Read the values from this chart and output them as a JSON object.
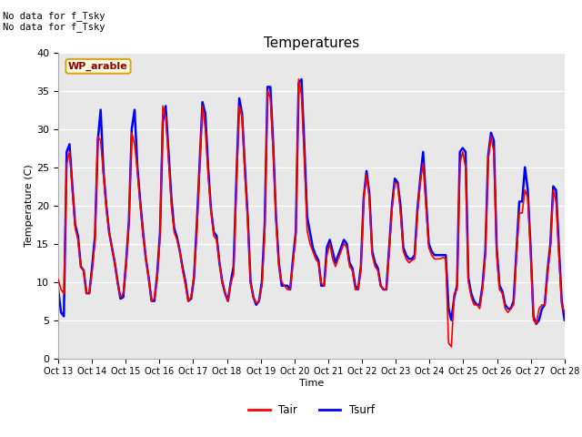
{
  "title": "Temperatures",
  "xlabel": "Time",
  "ylabel": "Temperature (C)",
  "ylim": [
    0,
    40
  ],
  "xtick_labels": [
    "Oct 13",
    "Oct 14",
    "Oct 15",
    "Oct 16",
    "Oct 17",
    "Oct 18",
    "Oct 19",
    "Oct 20",
    "Oct 21",
    "Oct 22",
    "Oct 23",
    "Oct 24",
    "Oct 25",
    "Oct 26",
    "Oct 27",
    "Oct 28"
  ],
  "legend_entries": [
    "Tair",
    "Tsurf"
  ],
  "tair_color": "red",
  "tsurf_color": "blue",
  "bg_color": "#e8e8e8",
  "wp_label": "WP_arable",
  "tair": [
    10.3,
    9.0,
    8.5,
    25.5,
    27.0,
    22.0,
    17.0,
    15.5,
    12.0,
    11.5,
    8.5,
    8.5,
    11.5,
    15.3,
    29.0,
    28.5,
    24.0,
    19.5,
    16.5,
    14.5,
    12.5,
    9.8,
    8.0,
    8.5,
    12.0,
    17.8,
    29.5,
    28.0,
    24.5,
    20.0,
    16.0,
    13.0,
    10.5,
    7.5,
    7.8,
    10.5,
    16.0,
    33.0,
    31.5,
    26.0,
    20.0,
    16.5,
    15.5,
    14.0,
    11.5,
    9.5,
    7.5,
    8.0,
    11.0,
    16.5,
    25.0,
    33.0,
    30.0,
    24.0,
    19.5,
    16.0,
    15.5,
    12.5,
    9.8,
    8.5,
    7.5,
    9.8,
    11.0,
    22.5,
    33.0,
    31.5,
    24.0,
    18.0,
    9.8,
    8.0,
    7.2,
    7.5,
    9.5,
    16.3,
    35.0,
    34.0,
    27.0,
    18.0,
    12.0,
    10.0,
    9.5,
    9.0,
    9.0,
    12.5,
    16.0,
    36.5,
    34.5,
    26.0,
    16.7,
    15.0,
    14.0,
    13.0,
    12.5,
    9.8,
    9.5,
    13.5,
    15.0,
    13.0,
    12.0,
    13.0,
    14.0,
    15.0,
    14.5,
    12.0,
    11.5,
    9.0,
    9.0,
    11.5,
    21.0,
    24.0,
    21.0,
    13.5,
    12.0,
    11.5,
    9.5,
    9.0,
    9.0,
    14.0,
    19.5,
    23.0,
    22.8,
    19.0,
    14.0,
    13.0,
    12.5,
    12.8,
    13.0,
    19.0,
    23.0,
    25.5,
    20.0,
    14.5,
    13.5,
    13.0,
    13.0,
    13.0,
    13.2,
    13.0,
    2.0,
    1.5,
    8.5,
    9.0,
    25.5,
    27.0,
    25.0,
    10.0,
    8.0,
    7.0,
    7.0,
    6.5,
    9.0,
    13.5,
    26.0,
    29.0,
    27.0,
    13.5,
    9.0,
    8.5,
    6.5,
    6.0,
    6.5,
    7.0,
    13.5,
    19.0,
    19.0,
    22.0,
    21.0,
    14.0,
    5.0,
    4.5,
    6.5,
    7.0,
    7.0,
    11.0,
    14.5,
    22.0,
    20.5,
    13.5,
    7.0,
    6.0
  ],
  "tsurf": [
    9.0,
    6.0,
    5.5,
    27.0,
    28.0,
    22.5,
    17.5,
    16.0,
    12.0,
    11.5,
    8.5,
    8.5,
    12.0,
    16.0,
    28.5,
    32.5,
    24.5,
    20.0,
    16.5,
    14.5,
    12.5,
    10.0,
    7.8,
    8.0,
    12.5,
    18.0,
    30.0,
    32.5,
    25.0,
    20.5,
    16.5,
    13.0,
    10.5,
    7.5,
    7.5,
    11.0,
    16.5,
    31.0,
    33.0,
    27.0,
    21.0,
    17.0,
    15.8,
    14.0,
    11.8,
    10.0,
    7.5,
    7.8,
    10.5,
    17.5,
    25.5,
    33.5,
    32.0,
    25.0,
    19.5,
    16.5,
    16.0,
    12.5,
    10.0,
    8.5,
    7.5,
    10.0,
    12.0,
    23.5,
    34.0,
    32.0,
    25.0,
    18.5,
    10.0,
    8.0,
    7.0,
    7.5,
    10.0,
    17.5,
    35.5,
    35.5,
    28.0,
    18.5,
    12.5,
    9.5,
    9.5,
    9.5,
    9.0,
    13.0,
    16.5,
    36.0,
    36.5,
    28.0,
    18.5,
    16.5,
    14.5,
    13.5,
    12.8,
    9.5,
    9.5,
    14.5,
    15.5,
    14.0,
    12.5,
    13.5,
    14.5,
    15.5,
    15.0,
    12.5,
    11.8,
    9.5,
    9.0,
    12.0,
    21.0,
    24.5,
    21.5,
    14.0,
    12.5,
    11.8,
    9.5,
    9.0,
    9.0,
    14.5,
    20.0,
    23.5,
    23.0,
    20.0,
    14.5,
    13.5,
    13.0,
    13.0,
    13.5,
    19.5,
    23.5,
    27.0,
    21.0,
    15.0,
    14.0,
    13.5,
    13.5,
    13.5,
    13.5,
    13.5,
    6.5,
    5.0,
    8.0,
    9.5,
    27.0,
    27.5,
    27.0,
    10.5,
    8.5,
    7.5,
    7.0,
    7.0,
    9.5,
    14.0,
    26.5,
    29.5,
    28.5,
    14.5,
    9.5,
    8.8,
    7.0,
    6.5,
    6.5,
    7.5,
    14.0,
    20.5,
    20.5,
    25.0,
    22.0,
    14.5,
    5.5,
    4.5,
    5.0,
    6.5,
    7.0,
    11.5,
    15.0,
    22.5,
    22.0,
    14.5,
    7.5,
    5.0
  ]
}
